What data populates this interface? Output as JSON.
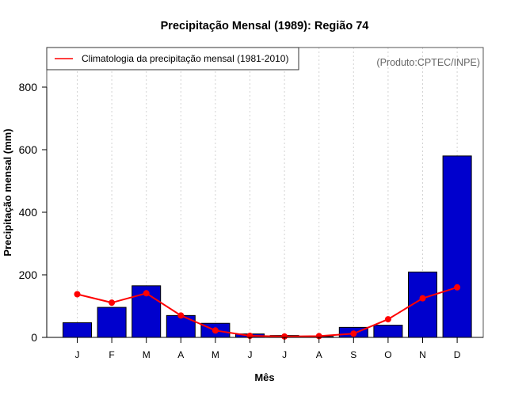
{
  "chart_data": {
    "type": "bar",
    "title": "Precipitação Mensal (1989): Região 74",
    "xlabel": "Mês",
    "ylabel": "Precipitação mensal (mm)",
    "ylim": [
      0,
      920
    ],
    "yticks": [
      0,
      200,
      400,
      600,
      800
    ],
    "grid": "vertical dotted",
    "categories": [
      "J",
      "F",
      "M",
      "A",
      "M",
      "J",
      "J",
      "A",
      "S",
      "O",
      "N",
      "D"
    ],
    "series": [
      {
        "name": "Precipitação mensal (1989)",
        "type": "bar",
        "color": "#0000CD",
        "values": [
          47,
          96,
          165,
          70,
          45,
          11,
          6,
          3,
          32,
          39,
          209,
          580
        ]
      },
      {
        "name": "Climatologia da precipitação mensal (1981-2010)",
        "type": "line",
        "color": "#FF0000",
        "values": [
          138,
          111,
          141,
          70,
          22,
          5,
          3,
          4,
          12,
          58,
          125,
          160
        ]
      }
    ],
    "legend": {
      "position": "top-left",
      "entries": [
        "Climatologia da precipitação mensal (1981-2010)"
      ]
    },
    "annotation": "(Produto:CPTEC/INPE)"
  }
}
